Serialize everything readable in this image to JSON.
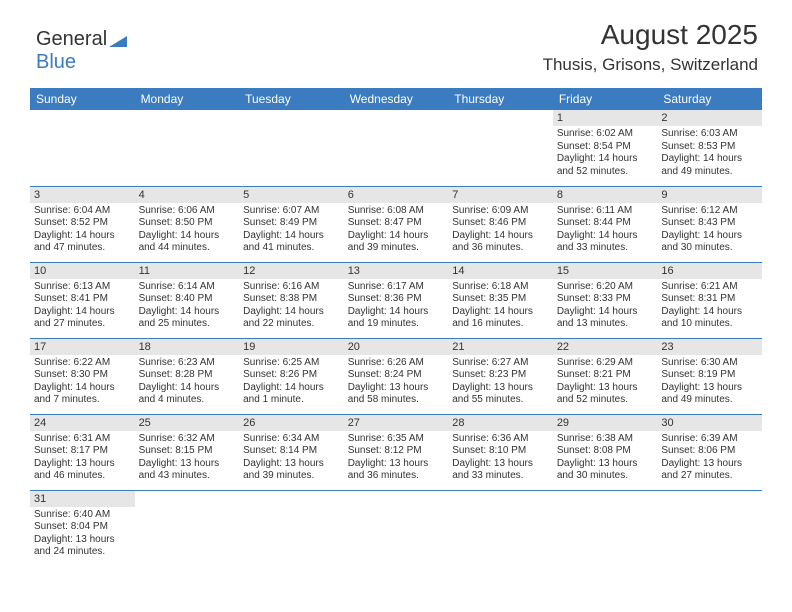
{
  "logo": {
    "text_general": "General",
    "text_blue": "Blue",
    "triangle_color": "#3b7bbf"
  },
  "header": {
    "title": "August 2025",
    "location": "Thusis, Grisons, Switzerland"
  },
  "colors": {
    "header_bg": "#3b7bbf",
    "header_text": "#ffffff",
    "daynum_bg": "#e6e6e6",
    "border": "#3b7bbf",
    "text": "#333333",
    "page_bg": "#ffffff"
  },
  "typography": {
    "title_fontsize": 28,
    "location_fontsize": 17,
    "th_fontsize": 12,
    "daynum_fontsize": 11,
    "cell_fontsize": 10
  },
  "weekdays": [
    "Sunday",
    "Monday",
    "Tuesday",
    "Wednesday",
    "Thursday",
    "Friday",
    "Saturday"
  ],
  "weeks": [
    [
      null,
      null,
      null,
      null,
      null,
      {
        "n": "1",
        "sr": "6:02 AM",
        "ss": "8:54 PM",
        "dl": "14 hours and 52 minutes."
      },
      {
        "n": "2",
        "sr": "6:03 AM",
        "ss": "8:53 PM",
        "dl": "14 hours and 49 minutes."
      }
    ],
    [
      {
        "n": "3",
        "sr": "6:04 AM",
        "ss": "8:52 PM",
        "dl": "14 hours and 47 minutes."
      },
      {
        "n": "4",
        "sr": "6:06 AM",
        "ss": "8:50 PM",
        "dl": "14 hours and 44 minutes."
      },
      {
        "n": "5",
        "sr": "6:07 AM",
        "ss": "8:49 PM",
        "dl": "14 hours and 41 minutes."
      },
      {
        "n": "6",
        "sr": "6:08 AM",
        "ss": "8:47 PM",
        "dl": "14 hours and 39 minutes."
      },
      {
        "n": "7",
        "sr": "6:09 AM",
        "ss": "8:46 PM",
        "dl": "14 hours and 36 minutes."
      },
      {
        "n": "8",
        "sr": "6:11 AM",
        "ss": "8:44 PM",
        "dl": "14 hours and 33 minutes."
      },
      {
        "n": "9",
        "sr": "6:12 AM",
        "ss": "8:43 PM",
        "dl": "14 hours and 30 minutes."
      }
    ],
    [
      {
        "n": "10",
        "sr": "6:13 AM",
        "ss": "8:41 PM",
        "dl": "14 hours and 27 minutes."
      },
      {
        "n": "11",
        "sr": "6:14 AM",
        "ss": "8:40 PM",
        "dl": "14 hours and 25 minutes."
      },
      {
        "n": "12",
        "sr": "6:16 AM",
        "ss": "8:38 PM",
        "dl": "14 hours and 22 minutes."
      },
      {
        "n": "13",
        "sr": "6:17 AM",
        "ss": "8:36 PM",
        "dl": "14 hours and 19 minutes."
      },
      {
        "n": "14",
        "sr": "6:18 AM",
        "ss": "8:35 PM",
        "dl": "14 hours and 16 minutes."
      },
      {
        "n": "15",
        "sr": "6:20 AM",
        "ss": "8:33 PM",
        "dl": "14 hours and 13 minutes."
      },
      {
        "n": "16",
        "sr": "6:21 AM",
        "ss": "8:31 PM",
        "dl": "14 hours and 10 minutes."
      }
    ],
    [
      {
        "n": "17",
        "sr": "6:22 AM",
        "ss": "8:30 PM",
        "dl": "14 hours and 7 minutes."
      },
      {
        "n": "18",
        "sr": "6:23 AM",
        "ss": "8:28 PM",
        "dl": "14 hours and 4 minutes."
      },
      {
        "n": "19",
        "sr": "6:25 AM",
        "ss": "8:26 PM",
        "dl": "14 hours and 1 minute."
      },
      {
        "n": "20",
        "sr": "6:26 AM",
        "ss": "8:24 PM",
        "dl": "13 hours and 58 minutes."
      },
      {
        "n": "21",
        "sr": "6:27 AM",
        "ss": "8:23 PM",
        "dl": "13 hours and 55 minutes."
      },
      {
        "n": "22",
        "sr": "6:29 AM",
        "ss": "8:21 PM",
        "dl": "13 hours and 52 minutes."
      },
      {
        "n": "23",
        "sr": "6:30 AM",
        "ss": "8:19 PM",
        "dl": "13 hours and 49 minutes."
      }
    ],
    [
      {
        "n": "24",
        "sr": "6:31 AM",
        "ss": "8:17 PM",
        "dl": "13 hours and 46 minutes."
      },
      {
        "n": "25",
        "sr": "6:32 AM",
        "ss": "8:15 PM",
        "dl": "13 hours and 43 minutes."
      },
      {
        "n": "26",
        "sr": "6:34 AM",
        "ss": "8:14 PM",
        "dl": "13 hours and 39 minutes."
      },
      {
        "n": "27",
        "sr": "6:35 AM",
        "ss": "8:12 PM",
        "dl": "13 hours and 36 minutes."
      },
      {
        "n": "28",
        "sr": "6:36 AM",
        "ss": "8:10 PM",
        "dl": "13 hours and 33 minutes."
      },
      {
        "n": "29",
        "sr": "6:38 AM",
        "ss": "8:08 PM",
        "dl": "13 hours and 30 minutes."
      },
      {
        "n": "30",
        "sr": "6:39 AM",
        "ss": "8:06 PM",
        "dl": "13 hours and 27 minutes."
      }
    ],
    [
      {
        "n": "31",
        "sr": "6:40 AM",
        "ss": "8:04 PM",
        "dl": "13 hours and 24 minutes."
      },
      null,
      null,
      null,
      null,
      null,
      null
    ]
  ],
  "labels": {
    "sunrise": "Sunrise:",
    "sunset": "Sunset:",
    "daylight": "Daylight:"
  }
}
